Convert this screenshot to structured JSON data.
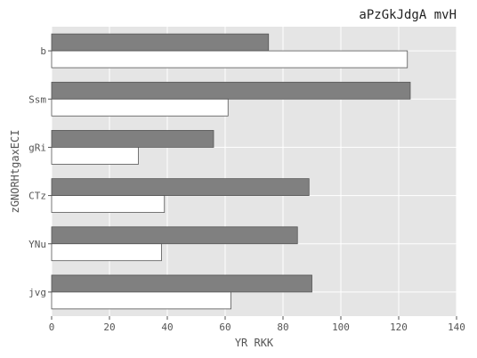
{
  "chart_data": {
    "type": "bar",
    "orientation": "horizontal",
    "title": "aPzGkJdgA mvH",
    "xlabel": "YR RKK",
    "ylabel": "zGNORHtgaxECI",
    "categories": [
      "b",
      "Ssm",
      "gRi",
      "CTz",
      "YNu",
      "jvg"
    ],
    "series": [
      {
        "values": [
          75,
          124,
          56,
          89,
          85,
          90
        ],
        "color": "#808080"
      },
      {
        "values": [
          123,
          61,
          30,
          39,
          38,
          62
        ],
        "color": "#ffffff"
      }
    ],
    "xlim": [
      0,
      140
    ],
    "xticks": [
      0,
      20,
      40,
      60,
      80,
      100,
      120,
      140
    ],
    "grid": true,
    "background": "#e5e5e5",
    "gridColor": "#ffffff"
  }
}
